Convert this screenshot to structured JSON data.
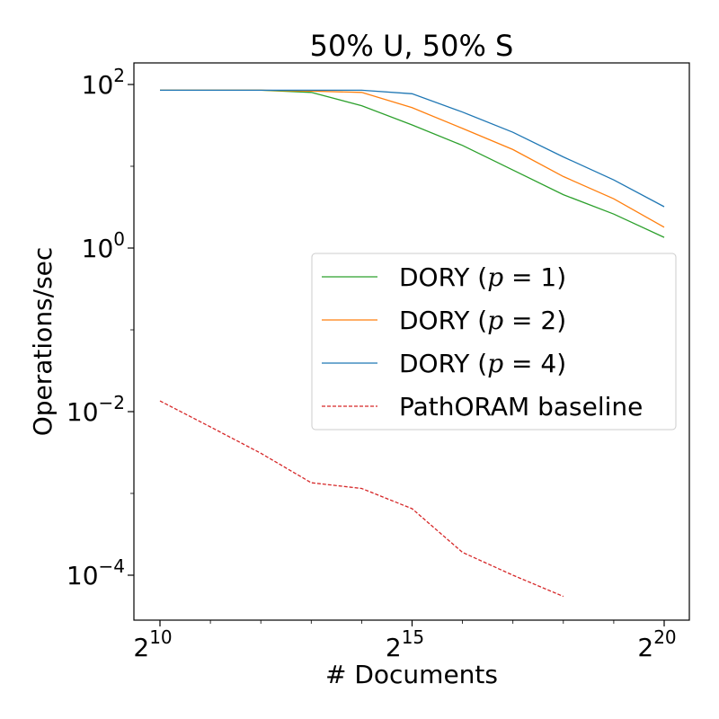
{
  "chart_data": {
    "type": "line",
    "title": "50% U, 50% S",
    "xlabel": "# Documents",
    "ylabel": "Operations/sec",
    "x_scale": "log2",
    "y_scale": "log10",
    "xlim": [
      10,
      20
    ],
    "ylim_log10": [
      -5.25,
      1.25
    ],
    "grid": false,
    "legend_position": "center-right",
    "x_ticks": [
      {
        "exp": 10,
        "base": "2",
        "sup": "10"
      },
      {
        "exp": 15,
        "base": "2",
        "sup": "15"
      },
      {
        "exp": 20,
        "base": "2",
        "sup": "20"
      }
    ],
    "y_ticks": [
      {
        "exp": 2,
        "base": "10",
        "sup": "2"
      },
      {
        "exp": 0,
        "base": "10",
        "sup": "0"
      },
      {
        "exp": -2,
        "base": "10",
        "sup": "−2"
      },
      {
        "exp": -4,
        "base": "10",
        "sup": "−4"
      }
    ],
    "x": [
      10,
      11,
      12,
      13,
      14,
      15,
      16,
      17,
      18,
      19,
      20
    ],
    "series": [
      {
        "name": "DORY (p = 1)",
        "name_prefix": "DORY (",
        "name_var": "p",
        "name_suffix": " = 1)",
        "color": "#2ca02c",
        "dash": "solid",
        "x": [
          10,
          11,
          12,
          13,
          14,
          15,
          16,
          17,
          18,
          19,
          20
        ],
        "values": [
          85,
          85,
          85,
          80,
          55,
          32,
          18,
          9.0,
          4.5,
          2.6,
          1.35
        ]
      },
      {
        "name": "DORY (p = 2)",
        "name_prefix": "DORY (",
        "name_var": "p",
        "name_suffix": " = 2)",
        "color": "#ff7f0e",
        "dash": "solid",
        "x": [
          10,
          11,
          12,
          13,
          14,
          15,
          16,
          17,
          18,
          19,
          20
        ],
        "values": [
          85,
          85,
          85,
          83,
          80,
          52,
          29,
          16,
          7.5,
          4.0,
          1.8
        ]
      },
      {
        "name": "DORY (p = 4)",
        "name_prefix": "DORY (",
        "name_var": "p",
        "name_suffix": " = 4)",
        "color": "#1f77b4",
        "dash": "solid",
        "x": [
          10,
          11,
          12,
          13,
          14,
          15,
          16,
          17,
          18,
          19,
          20
        ],
        "values": [
          85,
          85,
          85,
          85,
          85,
          77,
          46,
          26,
          13,
          6.8,
          3.2
        ]
      },
      {
        "name": "PathORAM baseline",
        "color": "#d62728",
        "dash": "dashed",
        "x": [
          10,
          11,
          12,
          13,
          14,
          15,
          16,
          17,
          18
        ],
        "values": [
          0.0135,
          0.0065,
          0.0031,
          0.00135,
          0.00115,
          0.00065,
          0.00019,
          0.0001,
          5.5e-05
        ]
      }
    ]
  }
}
